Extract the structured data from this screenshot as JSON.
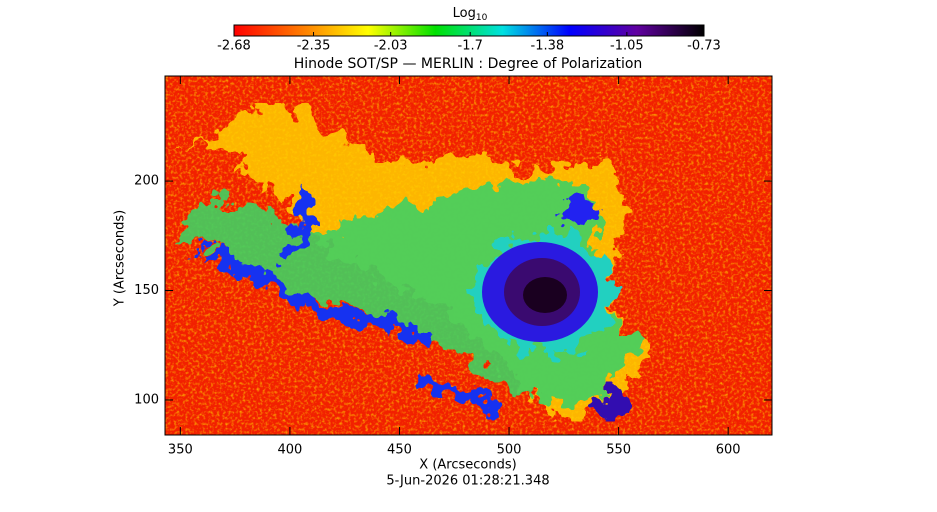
{
  "chart_data": {
    "type": "image",
    "title": "Hinode SOT/SP — MERLIN : Degree of Polarization",
    "xlabel": "X (Arcseconds)",
    "ylabel": "Y (Arcseconds)",
    "timestamp": "5-Jun-2026 01:28:21.348",
    "xlim": [
      343,
      620
    ],
    "ylim": [
      84,
      248
    ],
    "xticks": [
      350,
      400,
      450,
      500,
      550,
      600
    ],
    "yticks": [
      100,
      150,
      200
    ],
    "colorbar": {
      "label": "Log",
      "label_sub": "10",
      "lim": [
        -2.68,
        -0.73
      ],
      "ticks": [
        -2.68,
        -2.35,
        -2.03,
        -1.7,
        -1.38,
        -1.05,
        -0.73
      ],
      "colormap": [
        "#ff0000",
        "#ff7a00",
        "#ffff00",
        "#00e000",
        "#00e0e0",
        "#0000ff",
        "#6000a0",
        "#000000"
      ]
    }
  }
}
